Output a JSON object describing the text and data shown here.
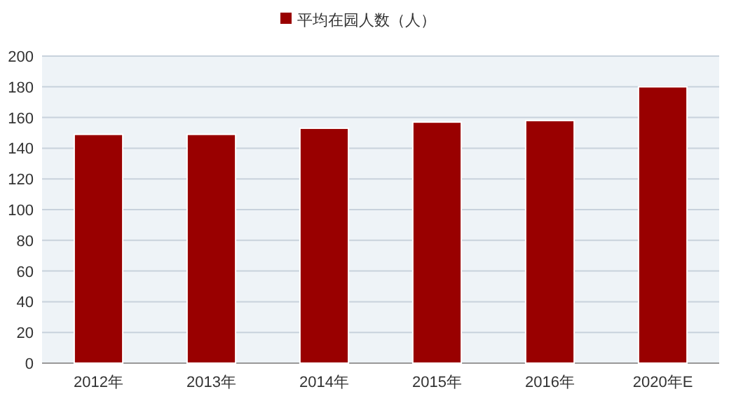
{
  "chart_data": {
    "type": "bar",
    "categories": [
      "2012年",
      "2013年",
      "2014年",
      "2015年",
      "2016年",
      "2020年E"
    ],
    "series": [
      {
        "name": "平均在园人数（人）",
        "color": "#990000",
        "values": [
          149,
          149,
          153,
          157,
          158,
          180
        ]
      }
    ],
    "ylim": [
      0,
      200
    ],
    "yticks": [
      0,
      20,
      40,
      60,
      80,
      100,
      120,
      140,
      160,
      180,
      200
    ],
    "grid": "y",
    "legend": "top"
  }
}
